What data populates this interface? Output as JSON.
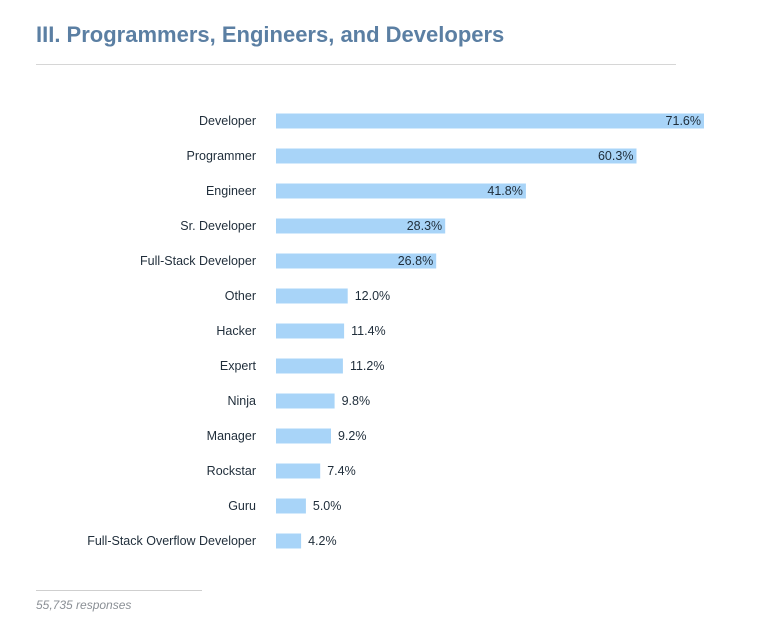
{
  "title": "III. Programmers, Engineers, and Developers",
  "footer": {
    "responses": "55,735 responses"
  },
  "colors": {
    "bar": "#a8d4f8",
    "label": "#1f2d3a",
    "title": "#5b7fa3"
  },
  "chart_data": {
    "type": "bar",
    "orientation": "horizontal",
    "title": "III. Programmers, Engineers, and Developers",
    "categories": [
      "Developer",
      "Programmer",
      "Engineer",
      "Sr. Developer",
      "Full-Stack Developer",
      "Other",
      "Hacker",
      "Expert",
      "Ninja",
      "Manager",
      "Rockstar",
      "Guru",
      "Full-Stack Overflow Developer"
    ],
    "values": [
      71.6,
      60.3,
      41.8,
      28.3,
      26.8,
      12.0,
      11.4,
      11.2,
      9.8,
      9.2,
      7.4,
      5.0,
      4.2
    ],
    "value_labels": [
      "71.6%",
      "60.3%",
      "41.8%",
      "28.3%",
      "26.8%",
      "12.0%",
      "11.4%",
      "11.2%",
      "9.8%",
      "9.2%",
      "7.4%",
      "5.0%",
      "4.2%"
    ],
    "unit": "%",
    "xlim": [
      0,
      71.6
    ],
    "grid": false,
    "legend": "none"
  }
}
